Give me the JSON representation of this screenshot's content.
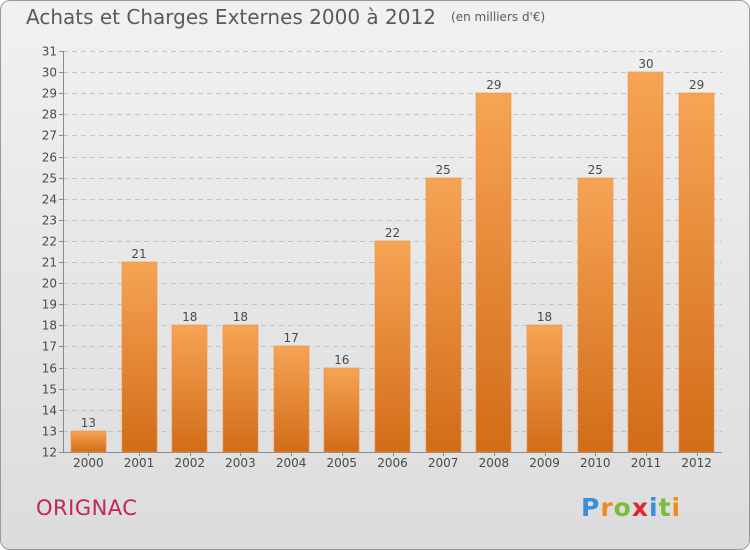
{
  "header": {
    "title": "Achats et Charges Externes 2000 à 2012",
    "subtitle": "(en milliers d'€)"
  },
  "footer": {
    "commune": "ORIGNAC",
    "brand_letters": [
      "P",
      "r",
      "o",
      "x",
      "i",
      "t",
      "i"
    ]
  },
  "colors": {
    "bar_top": "#f6a455",
    "bar_bottom": "#d26c18",
    "commune": "#c0245e",
    "brand": [
      "#3b8fd8",
      "#f08a1c",
      "#7cbc3a",
      "#e0262a",
      "#3b8fd8",
      "#7cbc3a",
      "#f08a1c"
    ]
  },
  "chart_data": {
    "type": "bar",
    "categories": [
      "2000",
      "2001",
      "2002",
      "2003",
      "2004",
      "2005",
      "2006",
      "2007",
      "2008",
      "2009",
      "2010",
      "2011",
      "2012"
    ],
    "values": [
      13,
      21,
      18,
      18,
      17,
      16,
      22,
      25,
      29,
      18,
      25,
      30,
      29
    ],
    "ylim": [
      12,
      31
    ],
    "yticks": [
      12,
      13,
      14,
      15,
      16,
      17,
      18,
      19,
      20,
      21,
      22,
      23,
      24,
      25,
      26,
      27,
      28,
      29,
      30,
      31
    ],
    "grid": true,
    "data_labels": true
  }
}
